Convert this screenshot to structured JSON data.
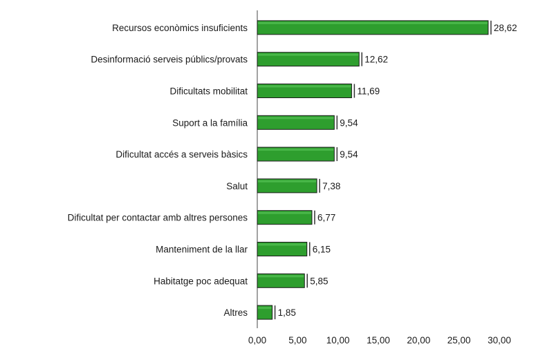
{
  "chart_data": {
    "type": "bar",
    "orientation": "horizontal",
    "title": "",
    "xlabel": "",
    "ylabel": "",
    "categories": [
      "Recursos econòmics insuficients",
      "Desinformació serveis públics/provats",
      "Dificultats mobilitat",
      "Suport a la família",
      "Dificultat accés a serveis bàsics",
      "Salut",
      "Dificultat per contactar amb altres persones",
      "Manteniment de la llar",
      "Habitatge poc adequat",
      "Altres"
    ],
    "values": [
      28.62,
      12.62,
      11.69,
      9.54,
      9.54,
      7.38,
      6.77,
      6.15,
      5.85,
      1.85
    ],
    "value_labels": [
      "28,62",
      "12,62",
      "11,69",
      "9,54",
      "9,54",
      "7,38",
      "6,77",
      "6,15",
      "5,85",
      "1,85"
    ],
    "xlim": [
      0,
      30
    ],
    "x_ticks": [
      0,
      5,
      10,
      15,
      20,
      25,
      30
    ],
    "x_tick_labels": [
      "0,00",
      "5,00",
      "10,00",
      "15,00",
      "20,00",
      "25,00",
      "30,00"
    ],
    "grid": false,
    "legend": "none",
    "bar_color": "#2e9e2e",
    "bar_edge_color": "#1a1a1a"
  }
}
